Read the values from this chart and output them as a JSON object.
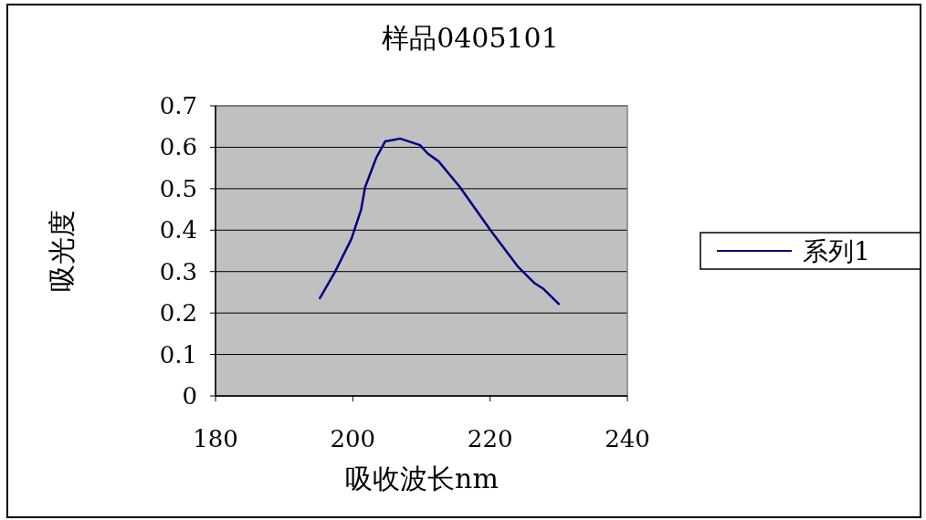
{
  "chart_data": {
    "type": "line",
    "title": "样品0405101",
    "xlabel": "吸收波长nm",
    "ylabel": "吸光度",
    "xlim": [
      180,
      240
    ],
    "xticks": [
      180,
      200,
      220,
      240
    ],
    "ylim": [
      0,
      0.7
    ],
    "yticks": [
      0,
      0.1,
      0.2,
      0.3,
      0.4,
      0.5,
      0.6,
      0.7
    ],
    "grid": "y",
    "legend": "right",
    "series": [
      {
        "name": "系列1",
        "color": "#000080",
        "x": [
          195.2,
          197.4,
          199.8,
          201.2,
          201.8,
          202.9,
          203.4,
          204.7,
          206.0,
          206.9,
          209.8,
          210.9,
          212.5,
          215.6,
          220.0,
          224.0,
          226.4,
          227.8,
          230.0
        ],
        "values": [
          0.236,
          0.299,
          0.379,
          0.449,
          0.504,
          0.552,
          0.574,
          0.614,
          0.618,
          0.621,
          0.605,
          0.585,
          0.566,
          0.504,
          0.401,
          0.313,
          0.273,
          0.258,
          0.222
        ]
      }
    ]
  }
}
